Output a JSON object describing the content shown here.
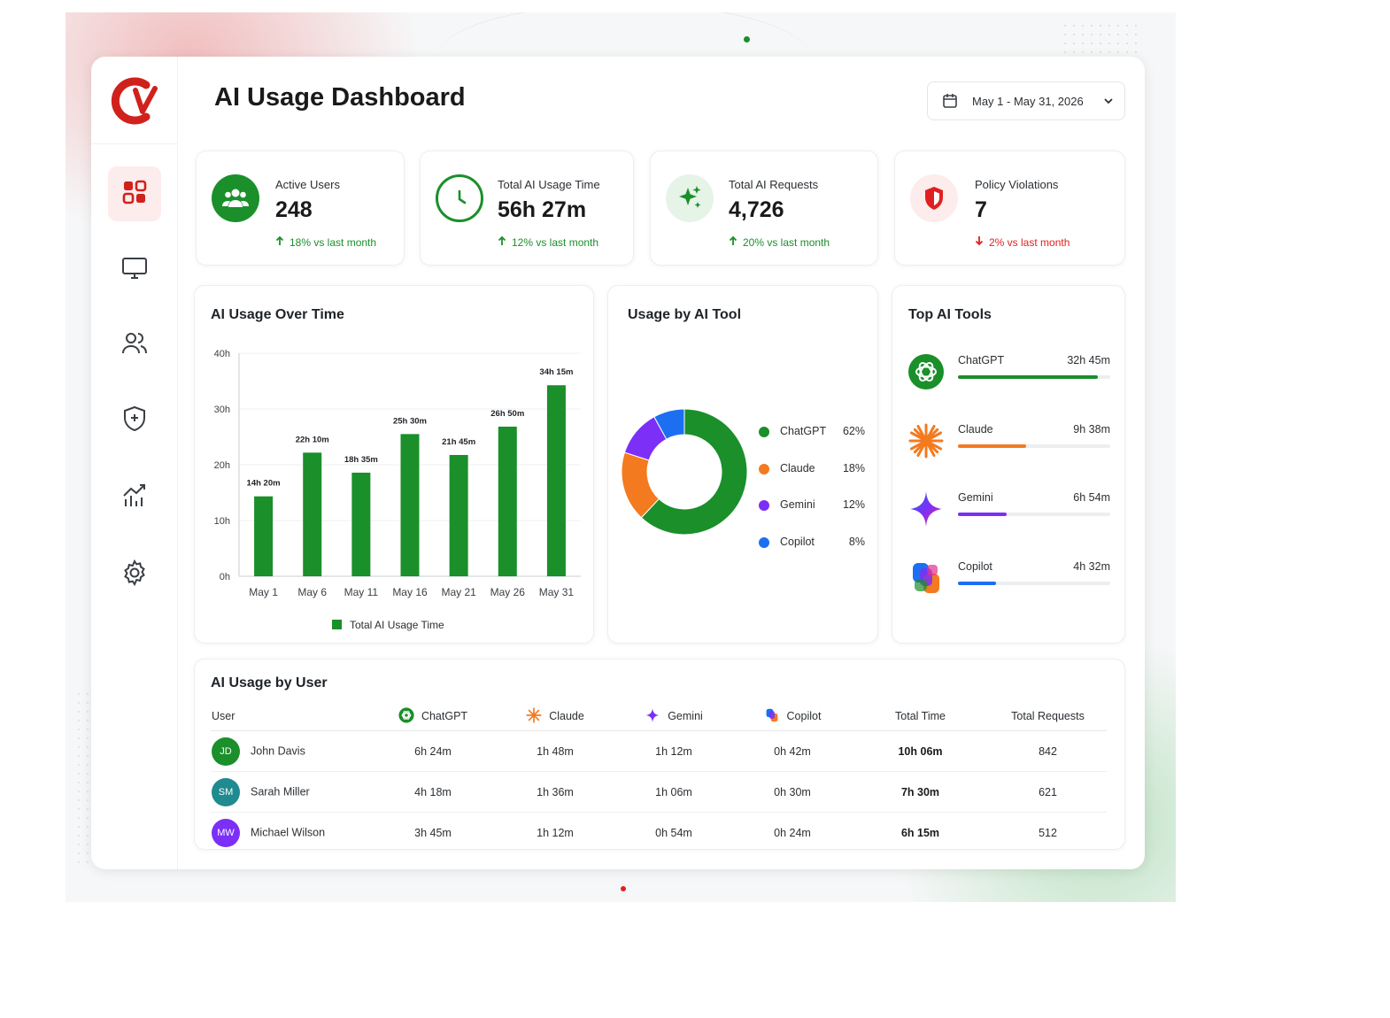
{
  "header": {
    "title": "AI Usage Dashboard",
    "date_range": "May 1 - May 31, 2026"
  },
  "sidebar": {
    "items": [
      {
        "icon": "dashboard-grid-icon",
        "active": true
      },
      {
        "icon": "monitor-icon",
        "active": false
      },
      {
        "icon": "users-icon",
        "active": false
      },
      {
        "icon": "shield-icon",
        "active": false
      },
      {
        "icon": "analytics-chart-icon",
        "active": false
      },
      {
        "icon": "gear-icon",
        "active": false
      }
    ]
  },
  "kpis": {
    "active_users": {
      "label": "Active Users",
      "value": "248",
      "delta": "18% vs last month",
      "trend": "up",
      "icon": "users-icon",
      "color": "#1a8f2a"
    },
    "usage_time": {
      "label": "Total AI Usage Time",
      "value": "56h 27m",
      "delta": "12% vs last month",
      "trend": "up",
      "icon": "clock-icon",
      "color": "#1a8f2a"
    },
    "requests": {
      "label": "Total AI Requests",
      "value": "4,726",
      "delta": "20% vs last month",
      "trend": "up",
      "icon": "sparkle-icon",
      "color": "#1a8f2a"
    },
    "violations": {
      "label": "Policy Violations",
      "value": "7",
      "delta": "2% vs last month",
      "trend": "down",
      "icon": "shield-alert-icon",
      "color": "#e02020"
    }
  },
  "usage_over_time": {
    "title": "AI Usage Over Time",
    "legend": "Total AI Usage Time",
    "y_ticks": [
      "0h",
      "10h",
      "20h",
      "30h",
      "40h"
    ],
    "bar_labels": [
      "14h 20m",
      "22h 10m",
      "18h 35m",
      "25h 30m",
      "21h 45m",
      "26h 50m",
      "34h 15m"
    ]
  },
  "usage_by_tool": {
    "title": "Usage by AI Tool",
    "legend": [
      {
        "name": "ChatGPT",
        "pct": "62%"
      },
      {
        "name": "Claude",
        "pct": "18%"
      },
      {
        "name": "Gemini",
        "pct": "12%"
      },
      {
        "name": "Copilot",
        "pct": "8%"
      }
    ]
  },
  "top_tools": {
    "title": "Top AI Tools",
    "items": [
      {
        "name": "ChatGPT",
        "time": "32h 45m",
        "share": 0.92,
        "color": "#1a8f2a",
        "icon": "chatgpt-logo-icon"
      },
      {
        "name": "Claude",
        "time": "9h 38m",
        "share": 0.45,
        "color": "#f47a20",
        "icon": "claude-logo-icon"
      },
      {
        "name": "Gemini",
        "time": "6h 54m",
        "share": 0.32,
        "color": "#7b2ff7",
        "icon": "gemini-logo-icon"
      },
      {
        "name": "Copilot",
        "time": "4h 32m",
        "share": 0.25,
        "color": "#1d6ff2",
        "icon": "copilot-logo-icon"
      }
    ]
  },
  "usage_by_user": {
    "title": "AI Usage by User",
    "columns": {
      "user": "User",
      "chatgpt": "ChatGPT",
      "claude": "Claude",
      "gemini": "Gemini",
      "copilot": "Copilot",
      "total_time": "Total Time",
      "total_requests": "Total Requests"
    },
    "rows": [
      {
        "initials": "JD",
        "name": "John Davis",
        "avatar_color": "#1a8f2a",
        "chatgpt": "6h 24m",
        "claude": "1h 48m",
        "gemini": "1h 12m",
        "copilot": "0h 42m",
        "total_time": "10h 06m",
        "total_requests": "842"
      },
      {
        "initials": "SM",
        "name": "Sarah Miller",
        "avatar_color": "#1f8a8f",
        "chatgpt": "4h 18m",
        "claude": "1h 36m",
        "gemini": "1h 06m",
        "copilot": "0h 30m",
        "total_time": "7h 30m",
        "total_requests": "621"
      },
      {
        "initials": "MW",
        "name": "Michael Wilson",
        "avatar_color": "#7b2ff7",
        "chatgpt": "3h 45m",
        "claude": "1h 12m",
        "gemini": "0h 54m",
        "copilot": "0h 24m",
        "total_time": "6h 15m",
        "total_requests": "512"
      }
    ]
  },
  "chart_data": [
    {
      "type": "bar",
      "title": "AI Usage Over Time",
      "categories": [
        "May 1",
        "May 6",
        "May 11",
        "May 16",
        "May 21",
        "May 26",
        "May 31"
      ],
      "series": [
        {
          "name": "Total AI Usage Time",
          "values": [
            14.33,
            22.17,
            18.58,
            25.5,
            21.75,
            26.83,
            34.25
          ]
        }
      ],
      "ylim": [
        0,
        40
      ],
      "y_unit": "h",
      "grid": true,
      "legend_position": "bottom",
      "color": "#1a8f2a"
    },
    {
      "type": "pie",
      "title": "Usage by AI Tool",
      "categories": [
        "ChatGPT",
        "Claude",
        "Gemini",
        "Copilot"
      ],
      "values": [
        62,
        18,
        12,
        8
      ],
      "colors": [
        "#1a8f2a",
        "#f47a20",
        "#7b2ff7",
        "#1d6ff2"
      ],
      "legend_position": "right"
    }
  ]
}
